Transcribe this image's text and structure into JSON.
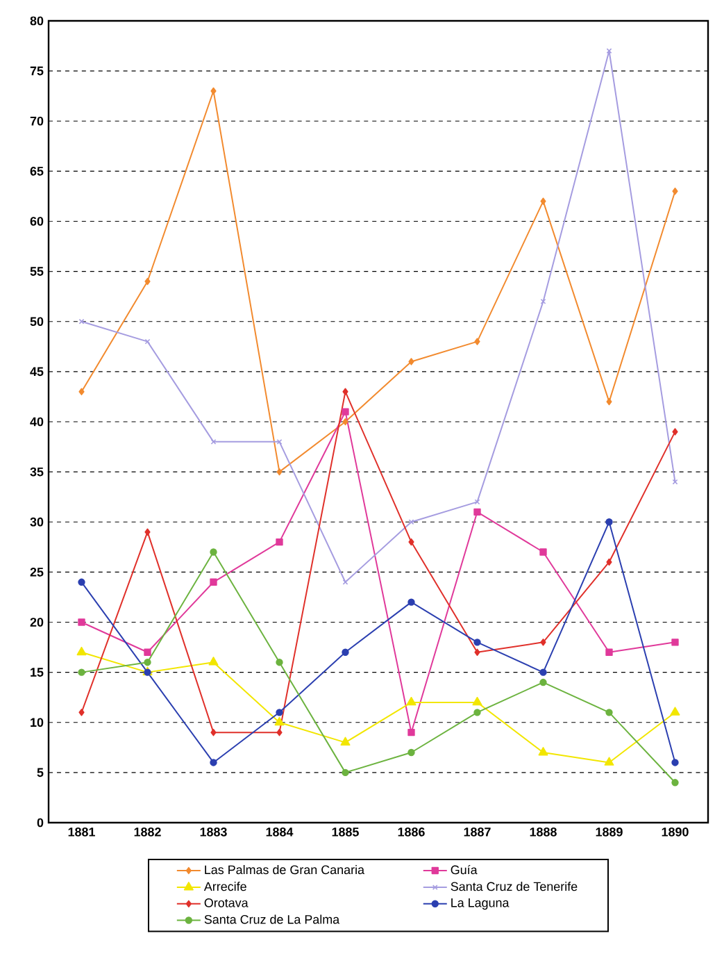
{
  "chart_data": {
    "type": "line",
    "categories": [
      "1881",
      "1882",
      "1883",
      "1884",
      "1885",
      "1886",
      "1887",
      "1888",
      "1889",
      "1890"
    ],
    "ylim": [
      0,
      80
    ],
    "yticks": [
      0,
      5,
      10,
      15,
      20,
      25,
      30,
      35,
      40,
      45,
      50,
      55,
      60,
      65,
      70,
      75,
      80
    ],
    "grid": "y",
    "legend": "bottom",
    "series": [
      {
        "name": "Las Palmas de Gran Canaria",
        "color": "#f28a2e",
        "marker": "diamond",
        "values": [
          43,
          54,
          73,
          35,
          40,
          46,
          48,
          62,
          42,
          63
        ]
      },
      {
        "name": "Guía",
        "color": "#e0399a",
        "marker": "square",
        "values": [
          20,
          17,
          24,
          28,
          41,
          9,
          31,
          27,
          17,
          18
        ]
      },
      {
        "name": "Arrecife",
        "color": "#f2e600",
        "marker": "triangle",
        "values": [
          17,
          15,
          16,
          10,
          8,
          12,
          12,
          7,
          6,
          11
        ]
      },
      {
        "name": "Santa Cruz de Tenerife",
        "color": "#a59ce0",
        "marker": "cross",
        "values": [
          50,
          48,
          38,
          38,
          24,
          30,
          32,
          52,
          77,
          34
        ]
      },
      {
        "name": "Orotava",
        "color": "#e0302a",
        "marker": "diamond",
        "values": [
          11,
          29,
          9,
          9,
          43,
          28,
          17,
          18,
          26,
          39
        ]
      },
      {
        "name": "La Laguna",
        "color": "#2b3fb0",
        "marker": "circle",
        "values": [
          24,
          15,
          6,
          11,
          17,
          22,
          18,
          15,
          30,
          6
        ]
      },
      {
        "name": "Santa Cruz de La Palma",
        "color": "#6cb33f",
        "marker": "circle",
        "values": [
          15,
          16,
          27,
          16,
          5,
          7,
          11,
          14,
          11,
          4
        ]
      }
    ]
  }
}
